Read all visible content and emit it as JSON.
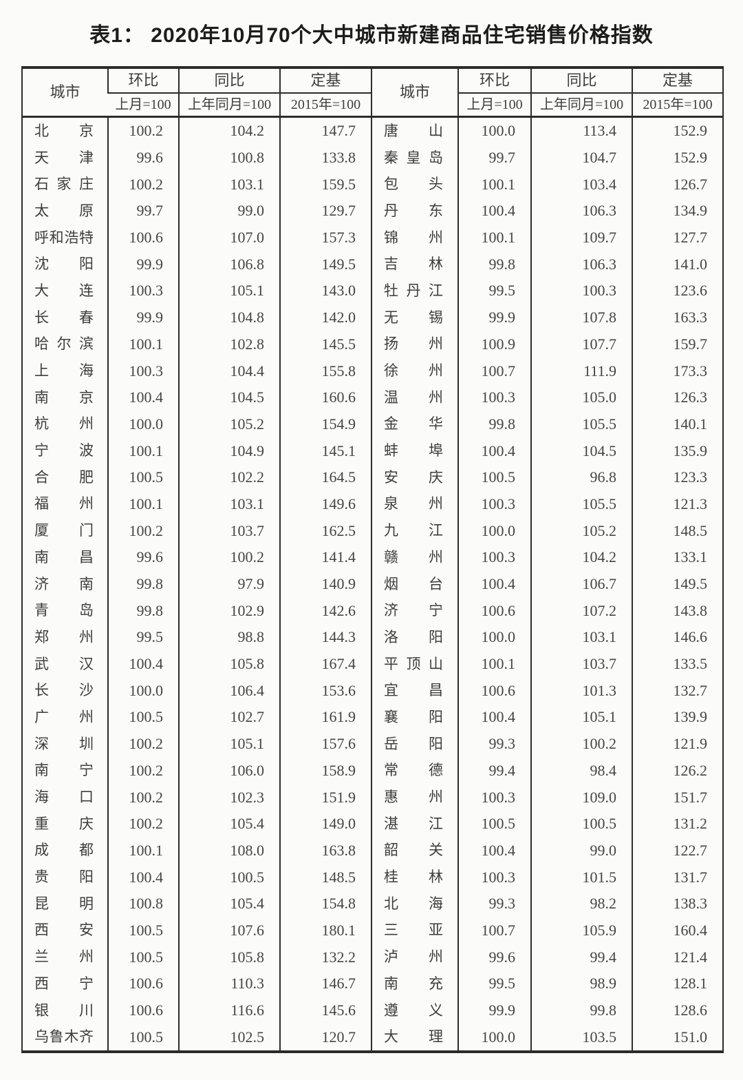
{
  "page": {
    "title": "表1： 2020年10月70个大中城市新建商品住宅销售价格指数"
  },
  "table": {
    "col_headers": {
      "city": "城市",
      "mom": "环比",
      "mom_sub": "上月=100",
      "yoy": "同比",
      "yoy_sub": "上年同月=100",
      "fixed": "定基",
      "fixed_sub": "2015年=100"
    },
    "left_rows": [
      {
        "city": "北京",
        "mom": "100.2",
        "yoy": "104.2",
        "fixed": "147.7"
      },
      {
        "city": "天津",
        "mom": "99.6",
        "yoy": "100.8",
        "fixed": "133.8"
      },
      {
        "city": "石家庄",
        "mom": "100.2",
        "yoy": "103.1",
        "fixed": "159.5"
      },
      {
        "city": "太原",
        "mom": "99.7",
        "yoy": "99.0",
        "fixed": "129.7"
      },
      {
        "city": "呼和浩特",
        "mom": "100.6",
        "yoy": "107.0",
        "fixed": "157.3"
      },
      {
        "city": "沈阳",
        "mom": "99.9",
        "yoy": "106.8",
        "fixed": "149.5"
      },
      {
        "city": "大连",
        "mom": "100.3",
        "yoy": "105.1",
        "fixed": "143.0"
      },
      {
        "city": "长春",
        "mom": "99.9",
        "yoy": "104.8",
        "fixed": "142.0"
      },
      {
        "city": "哈尔滨",
        "mom": "100.1",
        "yoy": "102.8",
        "fixed": "145.5"
      },
      {
        "city": "上海",
        "mom": "100.3",
        "yoy": "104.4",
        "fixed": "155.8"
      },
      {
        "city": "南京",
        "mom": "100.4",
        "yoy": "104.5",
        "fixed": "160.6"
      },
      {
        "city": "杭州",
        "mom": "100.0",
        "yoy": "105.2",
        "fixed": "154.9"
      },
      {
        "city": "宁波",
        "mom": "100.1",
        "yoy": "104.9",
        "fixed": "145.1"
      },
      {
        "city": "合肥",
        "mom": "100.5",
        "yoy": "102.2",
        "fixed": "164.5"
      },
      {
        "city": "福州",
        "mom": "100.1",
        "yoy": "103.1",
        "fixed": "149.6"
      },
      {
        "city": "厦门",
        "mom": "100.2",
        "yoy": "103.7",
        "fixed": "162.5"
      },
      {
        "city": "南昌",
        "mom": "99.6",
        "yoy": "100.2",
        "fixed": "141.4"
      },
      {
        "city": "济南",
        "mom": "99.8",
        "yoy": "97.9",
        "fixed": "140.9"
      },
      {
        "city": "青岛",
        "mom": "99.8",
        "yoy": "102.9",
        "fixed": "142.6"
      },
      {
        "city": "郑州",
        "mom": "99.5",
        "yoy": "98.8",
        "fixed": "144.3"
      },
      {
        "city": "武汉",
        "mom": "100.4",
        "yoy": "105.8",
        "fixed": "167.4"
      },
      {
        "city": "长沙",
        "mom": "100.0",
        "yoy": "106.4",
        "fixed": "153.6"
      },
      {
        "city": "广州",
        "mom": "100.5",
        "yoy": "102.7",
        "fixed": "161.9"
      },
      {
        "city": "深圳",
        "mom": "100.2",
        "yoy": "105.1",
        "fixed": "157.6"
      },
      {
        "city": "南宁",
        "mom": "100.2",
        "yoy": "106.0",
        "fixed": "158.9"
      },
      {
        "city": "海口",
        "mom": "100.2",
        "yoy": "102.3",
        "fixed": "151.9"
      },
      {
        "city": "重庆",
        "mom": "100.2",
        "yoy": "105.4",
        "fixed": "149.0"
      },
      {
        "city": "成都",
        "mom": "100.1",
        "yoy": "108.0",
        "fixed": "163.8"
      },
      {
        "city": "贵阳",
        "mom": "100.4",
        "yoy": "100.5",
        "fixed": "148.5"
      },
      {
        "city": "昆明",
        "mom": "100.8",
        "yoy": "105.4",
        "fixed": "154.8"
      },
      {
        "city": "西安",
        "mom": "100.5",
        "yoy": "107.6",
        "fixed": "180.1"
      },
      {
        "city": "兰州",
        "mom": "100.5",
        "yoy": "105.8",
        "fixed": "132.2"
      },
      {
        "city": "西宁",
        "mom": "100.6",
        "yoy": "110.3",
        "fixed": "146.7"
      },
      {
        "city": "银川",
        "mom": "100.6",
        "yoy": "116.6",
        "fixed": "145.6"
      },
      {
        "city": "乌鲁木齐",
        "mom": "100.5",
        "yoy": "102.5",
        "fixed": "120.7"
      }
    ],
    "right_rows": [
      {
        "city": "唐山",
        "mom": "100.0",
        "yoy": "113.4",
        "fixed": "152.9"
      },
      {
        "city": "秦皇岛",
        "mom": "99.7",
        "yoy": "104.7",
        "fixed": "152.9"
      },
      {
        "city": "包头",
        "mom": "100.1",
        "yoy": "103.4",
        "fixed": "126.7"
      },
      {
        "city": "丹东",
        "mom": "100.4",
        "yoy": "106.3",
        "fixed": "134.9"
      },
      {
        "city": "锦州",
        "mom": "100.1",
        "yoy": "109.7",
        "fixed": "127.7"
      },
      {
        "city": "吉林",
        "mom": "99.8",
        "yoy": "106.3",
        "fixed": "141.0"
      },
      {
        "city": "牡丹江",
        "mom": "99.5",
        "yoy": "100.3",
        "fixed": "123.6"
      },
      {
        "city": "无锡",
        "mom": "99.9",
        "yoy": "107.8",
        "fixed": "163.3"
      },
      {
        "city": "扬州",
        "mom": "100.9",
        "yoy": "107.7",
        "fixed": "159.7"
      },
      {
        "city": "徐州",
        "mom": "100.7",
        "yoy": "111.9",
        "fixed": "173.3"
      },
      {
        "city": "温州",
        "mom": "100.3",
        "yoy": "105.0",
        "fixed": "126.3"
      },
      {
        "city": "金华",
        "mom": "99.8",
        "yoy": "105.5",
        "fixed": "140.1"
      },
      {
        "city": "蚌埠",
        "mom": "100.4",
        "yoy": "104.5",
        "fixed": "135.9"
      },
      {
        "city": "安庆",
        "mom": "100.5",
        "yoy": "96.8",
        "fixed": "123.3"
      },
      {
        "city": "泉州",
        "mom": "100.3",
        "yoy": "105.5",
        "fixed": "121.3"
      },
      {
        "city": "九江",
        "mom": "100.0",
        "yoy": "105.2",
        "fixed": "148.5"
      },
      {
        "city": "赣州",
        "mom": "100.3",
        "yoy": "104.2",
        "fixed": "133.1"
      },
      {
        "city": "烟台",
        "mom": "100.4",
        "yoy": "106.7",
        "fixed": "149.5"
      },
      {
        "city": "济宁",
        "mom": "100.6",
        "yoy": "107.2",
        "fixed": "143.8"
      },
      {
        "city": "洛阳",
        "mom": "100.0",
        "yoy": "103.1",
        "fixed": "146.6"
      },
      {
        "city": "平顶山",
        "mom": "100.1",
        "yoy": "103.7",
        "fixed": "133.5"
      },
      {
        "city": "宜昌",
        "mom": "100.6",
        "yoy": "101.3",
        "fixed": "132.7"
      },
      {
        "city": "襄阳",
        "mom": "100.4",
        "yoy": "105.1",
        "fixed": "139.9"
      },
      {
        "city": "岳阳",
        "mom": "99.3",
        "yoy": "100.2",
        "fixed": "121.9"
      },
      {
        "city": "常德",
        "mom": "99.4",
        "yoy": "98.4",
        "fixed": "126.2"
      },
      {
        "city": "惠州",
        "mom": "100.3",
        "yoy": "109.0",
        "fixed": "151.7"
      },
      {
        "city": "湛江",
        "mom": "100.5",
        "yoy": "100.5",
        "fixed": "131.2"
      },
      {
        "city": "韶关",
        "mom": "100.4",
        "yoy": "99.0",
        "fixed": "122.7"
      },
      {
        "city": "桂林",
        "mom": "100.3",
        "yoy": "101.5",
        "fixed": "131.7"
      },
      {
        "city": "北海",
        "mom": "99.3",
        "yoy": "98.2",
        "fixed": "138.3"
      },
      {
        "city": "三亚",
        "mom": "100.7",
        "yoy": "105.9",
        "fixed": "160.4"
      },
      {
        "city": "泸州",
        "mom": "99.6",
        "yoy": "99.4",
        "fixed": "121.4"
      },
      {
        "city": "南充",
        "mom": "99.5",
        "yoy": "98.9",
        "fixed": "128.1"
      },
      {
        "city": "遵义",
        "mom": "99.9",
        "yoy": "99.8",
        "fixed": "128.6"
      },
      {
        "city": "大理",
        "mom": "100.0",
        "yoy": "103.5",
        "fixed": "151.0"
      }
    ]
  }
}
